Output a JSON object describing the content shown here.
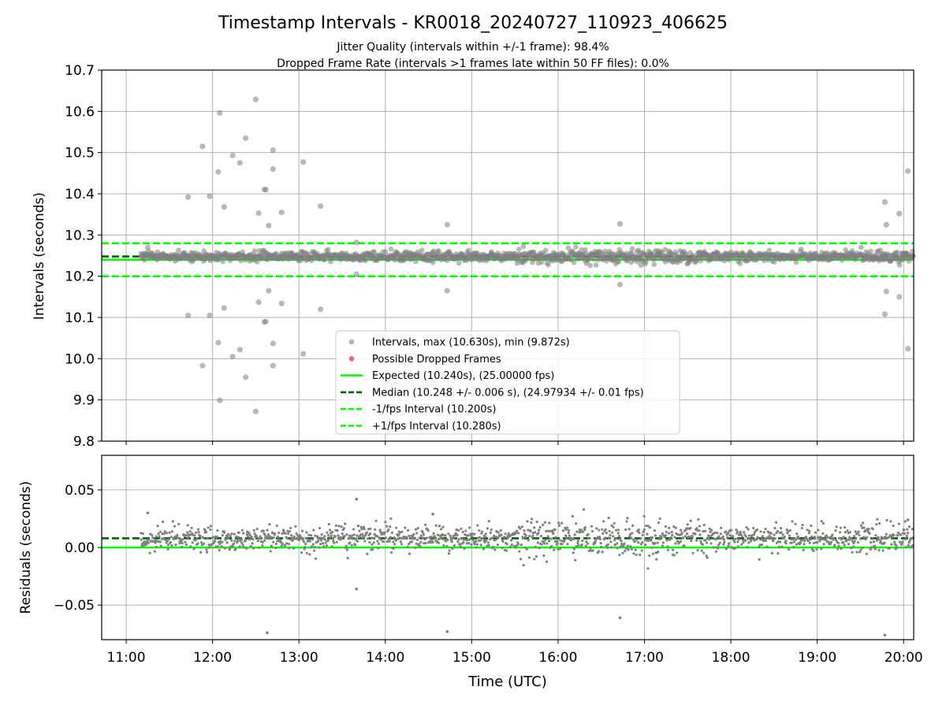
{
  "title": "Timestamp Intervals - KR0018_20240727_110923_406625",
  "subtitle_1": "Jitter Quality (intervals within +/-1 frame): 98.4%",
  "subtitle_2": "Dropped Frame Rate (intervals >1 frames late within 50 FF files): 0.0%",
  "colors": {
    "points": "#808080",
    "dropped": "#ff0000",
    "expected": "#00ff00",
    "median": "#006400",
    "bounds": "#00ff00",
    "grid": "#b0b0b0"
  },
  "chart_data": [
    {
      "type": "scatter",
      "ylabel": "Intervals (seconds)",
      "xlim": [
        "10:43",
        "20:07"
      ],
      "ylim": [
        9.8,
        10.7
      ],
      "yticks": [
        9.8,
        9.9,
        10.0,
        10.1,
        10.2,
        10.3,
        10.4,
        10.5,
        10.6,
        10.7
      ],
      "ytick_labels": [
        "9.8",
        "9.9",
        "10.0",
        "10.1",
        "10.2",
        "10.3",
        "10.4",
        "10.5",
        "10.6",
        "10.7"
      ],
      "grid": true,
      "legend_position": "lower center",
      "reference_lines": [
        {
          "name": "expected",
          "y": 10.24,
          "style": "solid"
        },
        {
          "name": "median",
          "y": 10.248,
          "style": "dashed"
        },
        {
          "name": "minus_one_frame",
          "y": 10.2,
          "style": "dashed"
        },
        {
          "name": "plus_one_frame",
          "y": 10.28,
          "style": "dashed"
        }
      ],
      "band": {
        "from": "11:10",
        "to": "20:07",
        "center": 10.248,
        "spread": 0.01,
        "density_note_points": 1400
      },
      "outliers": [
        {
          "x": "11:15",
          "y": 10.27
        },
        {
          "x": "11:43",
          "y": 10.392
        },
        {
          "x": "11:43",
          "y": 10.105
        },
        {
          "x": "11:53",
          "y": 10.515
        },
        {
          "x": "11:53",
          "y": 9.983
        },
        {
          "x": "11:58",
          "y": 10.394
        },
        {
          "x": "11:58",
          "y": 10.105
        },
        {
          "x": "12:04",
          "y": 10.453
        },
        {
          "x": "12:04",
          "y": 10.039
        },
        {
          "x": "12:05",
          "y": 10.596
        },
        {
          "x": "12:05",
          "y": 9.899
        },
        {
          "x": "12:08",
          "y": 10.368
        },
        {
          "x": "12:08",
          "y": 10.123
        },
        {
          "x": "12:14",
          "y": 10.493
        },
        {
          "x": "12:14",
          "y": 10.005
        },
        {
          "x": "12:19",
          "y": 10.475
        },
        {
          "x": "12:19",
          "y": 10.022
        },
        {
          "x": "12:23",
          "y": 10.535
        },
        {
          "x": "12:23",
          "y": 9.955
        },
        {
          "x": "12:30",
          "y": 10.629
        },
        {
          "x": "12:30",
          "y": 9.872
        },
        {
          "x": "12:32",
          "y": 10.353
        },
        {
          "x": "12:32",
          "y": 10.137
        },
        {
          "x": "12:36",
          "y": 10.41
        },
        {
          "x": "12:36",
          "y": 10.089
        },
        {
          "x": "12:37",
          "y": 10.41
        },
        {
          "x": "12:37",
          "y": 10.09
        },
        {
          "x": "12:39",
          "y": 10.323
        },
        {
          "x": "12:39",
          "y": 10.165
        },
        {
          "x": "12:42",
          "y": 10.506
        },
        {
          "x": "12:42",
          "y": 10.037
        },
        {
          "x": "12:42",
          "y": 10.46
        },
        {
          "x": "12:42",
          "y": 9.983
        },
        {
          "x": "12:48",
          "y": 10.355
        },
        {
          "x": "12:48",
          "y": 10.134
        },
        {
          "x": "13:03",
          "y": 10.477
        },
        {
          "x": "13:03",
          "y": 10.012
        },
        {
          "x": "13:15",
          "y": 10.37
        },
        {
          "x": "13:15",
          "y": 10.12
        },
        {
          "x": "13:40",
          "y": 10.282
        },
        {
          "x": "13:40",
          "y": 10.205
        },
        {
          "x": "14:43",
          "y": 10.325
        },
        {
          "x": "14:43",
          "y": 10.165
        },
        {
          "x": "16:43",
          "y": 10.327
        },
        {
          "x": "16:43",
          "y": 10.18
        },
        {
          "x": "19:47",
          "y": 10.38
        },
        {
          "x": "19:48",
          "y": 10.325
        },
        {
          "x": "19:48",
          "y": 10.163
        },
        {
          "x": "19:47",
          "y": 10.108
        },
        {
          "x": "19:57",
          "y": 10.352
        },
        {
          "x": "19:57",
          "y": 10.15
        },
        {
          "x": "20:03",
          "y": 10.455
        },
        {
          "x": "20:03",
          "y": 10.024
        }
      ],
      "legend": [
        "Intervals, max (10.630s), min (9.872s)",
        "Possible Dropped Frames",
        "Expected (10.240s), (25.00000 fps)",
        "Median (10.248 +/- 0.006 s), (24.97934 +/- 0.01 fps)",
        "-1/fps Interval (10.200s)",
        "+1/fps Interval (10.280s)"
      ]
    },
    {
      "type": "scatter",
      "ylabel": "Residuals (seconds)",
      "xlabel": "Time (UTC)",
      "xlim": [
        "10:43",
        "20:07"
      ],
      "ylim": [
        -0.08,
        0.08
      ],
      "yticks": [
        -0.05,
        0.0,
        0.05
      ],
      "ytick_labels": [
        "−0.05",
        "0.00",
        "0.05"
      ],
      "xticks": [
        "11:00",
        "12:00",
        "13:00",
        "14:00",
        "15:00",
        "16:00",
        "17:00",
        "18:00",
        "19:00",
        "20:00"
      ],
      "grid": true,
      "reference_lines": [
        {
          "name": "zero",
          "y": 0.0,
          "style": "solid"
        },
        {
          "name": "median_offset",
          "y": 0.008,
          "style": "dashed"
        }
      ],
      "band": {
        "from": "11:10",
        "to": "20:07",
        "center": 0.008,
        "spread": 0.01,
        "density_note_points": 1400
      },
      "outliers": [
        {
          "x": "11:15",
          "y": 0.03
        },
        {
          "x": "12:38",
          "y": -0.074
        },
        {
          "x": "13:40",
          "y": 0.042
        },
        {
          "x": "13:40",
          "y": -0.036
        },
        {
          "x": "14:43",
          "y": -0.073
        },
        {
          "x": "14:33",
          "y": 0.029
        },
        {
          "x": "16:43",
          "y": -0.061
        },
        {
          "x": "19:47",
          "y": -0.076
        },
        {
          "x": "20:03",
          "y": 0.024
        }
      ]
    }
  ]
}
